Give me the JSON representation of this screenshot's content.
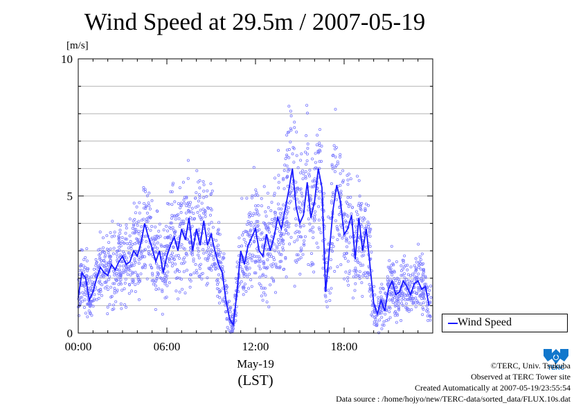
{
  "chart_data": {
    "type": "scatter",
    "title": "Wind Speed at 29.5m / 2007-05-19",
    "y_unit_label": "[m/s]",
    "ylim": [
      0,
      10
    ],
    "y_ticks": [
      "0",
      "5",
      "10"
    ],
    "x_range_hours": [
      0,
      24
    ],
    "x_ticks": [
      "00:00",
      "06:00",
      "12:00",
      "18:00"
    ],
    "x_date_label": "May-19",
    "xlabel": "(LST)",
    "grid": true,
    "legend": "right",
    "series": [
      {
        "name": "Wind Speed",
        "style": "line+scatter",
        "color": "#1818ff",
        "x_hours": [
          0.0,
          0.25,
          0.5,
          0.75,
          1.0,
          1.25,
          1.5,
          1.75,
          2.0,
          2.25,
          2.5,
          2.75,
          3.0,
          3.25,
          3.5,
          3.75,
          4.0,
          4.25,
          4.5,
          4.75,
          5.0,
          5.25,
          5.5,
          5.75,
          6.0,
          6.25,
          6.5,
          6.75,
          7.0,
          7.25,
          7.5,
          7.75,
          8.0,
          8.25,
          8.5,
          8.75,
          9.0,
          9.25,
          9.5,
          9.75,
          10.0,
          10.25,
          10.5,
          10.75,
          11.0,
          11.25,
          11.5,
          11.75,
          12.0,
          12.25,
          12.5,
          12.75,
          13.0,
          13.25,
          13.5,
          13.75,
          14.0,
          14.25,
          14.5,
          14.75,
          15.0,
          15.25,
          15.5,
          15.75,
          16.0,
          16.25,
          16.5,
          16.75,
          17.0,
          17.25,
          17.5,
          17.75,
          18.0,
          18.25,
          18.5,
          18.75,
          19.0,
          19.25,
          19.5,
          19.75,
          20.0,
          20.25,
          20.5,
          20.75,
          21.0,
          21.25,
          21.5,
          21.75,
          22.0,
          22.25,
          22.5,
          22.75,
          23.0,
          23.25,
          23.5,
          23.75
        ],
        "values": [
          1.3,
          2.2,
          2.0,
          1.2,
          1.5,
          2.0,
          2.4,
          2.2,
          2.1,
          2.5,
          2.3,
          2.6,
          2.8,
          2.5,
          2.6,
          3.0,
          2.8,
          3.3,
          4.0,
          3.5,
          3.1,
          2.6,
          3.0,
          2.2,
          2.8,
          3.2,
          3.5,
          3.0,
          3.8,
          3.4,
          4.2,
          3.0,
          3.8,
          3.2,
          4.1,
          3.2,
          3.6,
          3.0,
          2.5,
          2.2,
          1.2,
          0.5,
          0.3,
          1.5,
          3.0,
          2.5,
          3.2,
          3.5,
          3.8,
          3.0,
          2.8,
          3.6,
          3.0,
          3.5,
          4.2,
          3.8,
          4.5,
          5.2,
          6.0,
          4.6,
          4.0,
          4.3,
          5.5,
          4.2,
          4.8,
          6.0,
          5.3,
          1.5,
          3.0,
          4.5,
          5.4,
          4.8,
          3.6,
          3.8,
          4.3,
          2.7,
          4.2,
          3.0,
          3.8,
          2.5,
          1.1,
          0.7,
          1.2,
          0.8,
          1.6,
          1.9,
          1.4,
          1.5,
          1.9,
          1.7,
          1.4,
          1.8,
          1.9,
          1.6,
          1.7,
          1.0
        ]
      }
    ]
  },
  "legend": {
    "label": "Wind Speed"
  },
  "credits": {
    "line1": "©TERC, Univ. Tsukuba",
    "line2": "Observed at TERC Tower site",
    "line3": "Created Automatically at 2007-05-19/23:55:54",
    "line4": "Data source : /home/hojyo/new/TERC-data/sorted_data/FLUX.10s.dat"
  },
  "logo": {
    "text": "TERC",
    "color": "#1177cc"
  }
}
